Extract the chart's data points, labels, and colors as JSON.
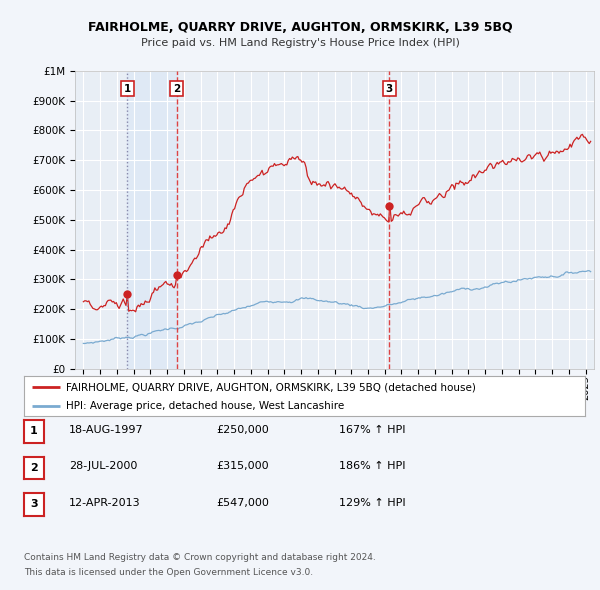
{
  "title": "FAIRHOLME, QUARRY DRIVE, AUGHTON, ORMSKIRK, L39 5BQ",
  "subtitle": "Price paid vs. HM Land Registry's House Price Index (HPI)",
  "legend_line1": "FAIRHOLME, QUARRY DRIVE, AUGHTON, ORMSKIRK, L39 5BQ (detached house)",
  "legend_line2": "HPI: Average price, detached house, West Lancashire",
  "sales": [
    {
      "num": 1,
      "date_dec": 1997.63,
      "price": 250000,
      "label": "18-AUG-1997",
      "pct": "167%",
      "line_style": "dotted",
      "line_color": "#8888aa"
    },
    {
      "num": 2,
      "date_dec": 2000.57,
      "price": 315000,
      "label": "28-JUL-2000",
      "pct": "186%",
      "line_style": "dashed",
      "line_color": "#dd4444"
    },
    {
      "num": 3,
      "date_dec": 2013.28,
      "price": 547000,
      "label": "12-APR-2013",
      "pct": "129%",
      "line_style": "dashed",
      "line_color": "#dd4444"
    }
  ],
  "footer_line1": "Contains HM Land Registry data © Crown copyright and database right 2024.",
  "footer_line2": "This data is licensed under the Open Government Licence v3.0.",
  "bg_color": "#f2f5fa",
  "plot_bg": "#e8eef5",
  "grid_color": "#ffffff",
  "red_line_color": "#cc2222",
  "blue_line_color": "#7aaad0",
  "marker_color": "#cc2222",
  "xmin": 1994.5,
  "xmax": 2025.5,
  "ymin": 0,
  "ymax": 1000000,
  "shade_color": "#dce8f5"
}
